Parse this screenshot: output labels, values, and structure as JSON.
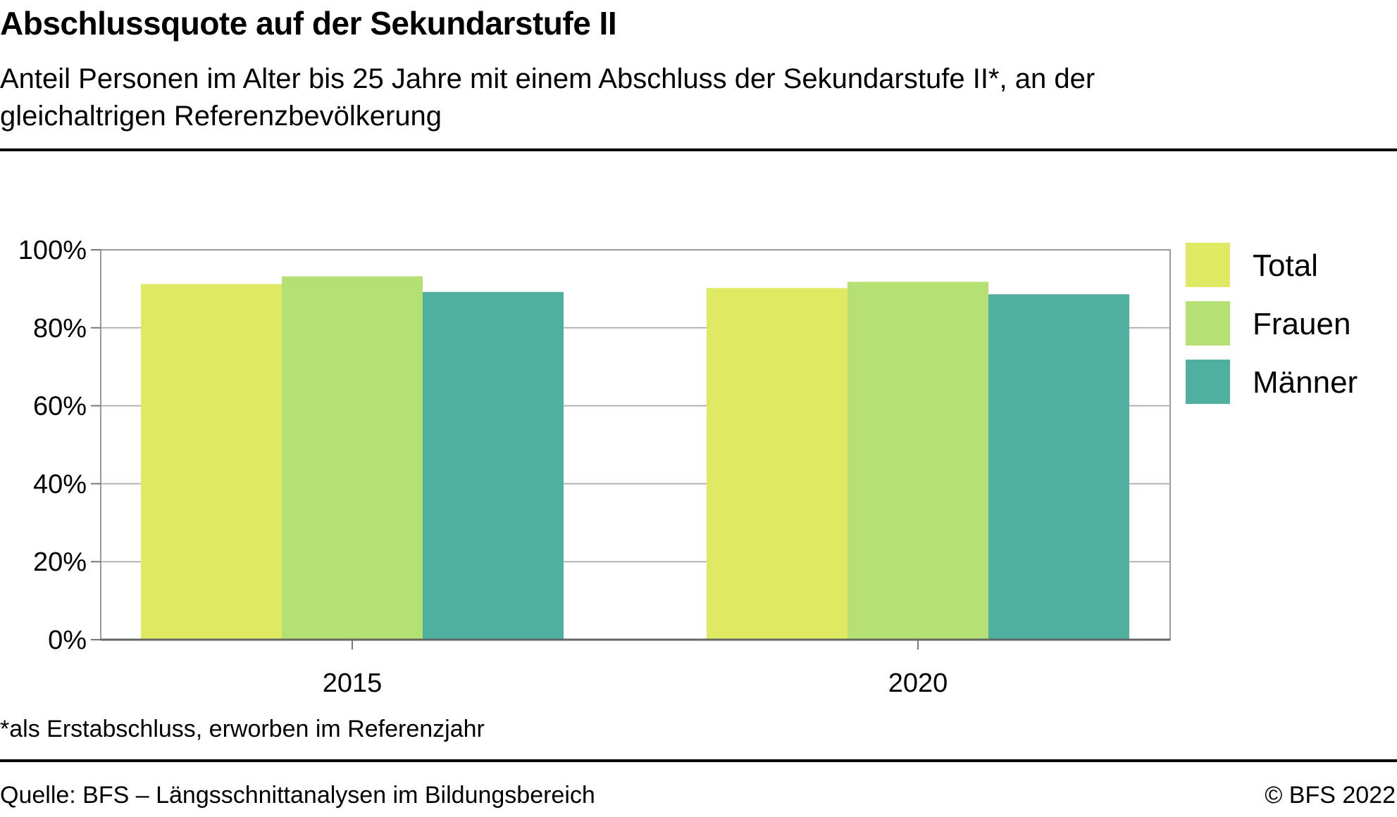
{
  "header": {
    "title": "Abschlussquote auf der Sekundarstufe II",
    "subtitle": "Anteil Personen im Alter bis 25 Jahre mit einem Abschluss der  Sekundarstufe II*, an der gleichaltrigen Referenzbevölkerung"
  },
  "footer": {
    "footnote": "*als Erstabschluss, erworben im Referenzjahr",
    "source": "Quelle: BFS – Längsschnittanalysen im Bildungsbereich",
    "copyright": "© BFS 2022"
  },
  "chart_data": {
    "type": "bar",
    "title": "Abschlussquote auf der Sekundarstufe II",
    "xlabel": "",
    "ylabel": "",
    "categories": [
      "2015",
      "2020"
    ],
    "series": [
      {
        "name": "Total",
        "color": "#dfea62",
        "values": [
          91.2,
          90.2
        ]
      },
      {
        "name": "Frauen",
        "color": "#b5e074",
        "values": [
          93.2,
          91.8
        ]
      },
      {
        "name": "Männer",
        "color": "#4fb09f",
        "values": [
          89.2,
          88.6
        ]
      }
    ],
    "ylim": [
      0,
      100
    ],
    "yticks": [
      0,
      20,
      40,
      60,
      80,
      100
    ],
    "ytick_labels": [
      "0%",
      "20%",
      "40%",
      "60%",
      "80%",
      "100%"
    ],
    "grid": true,
    "legend_position": "right"
  }
}
